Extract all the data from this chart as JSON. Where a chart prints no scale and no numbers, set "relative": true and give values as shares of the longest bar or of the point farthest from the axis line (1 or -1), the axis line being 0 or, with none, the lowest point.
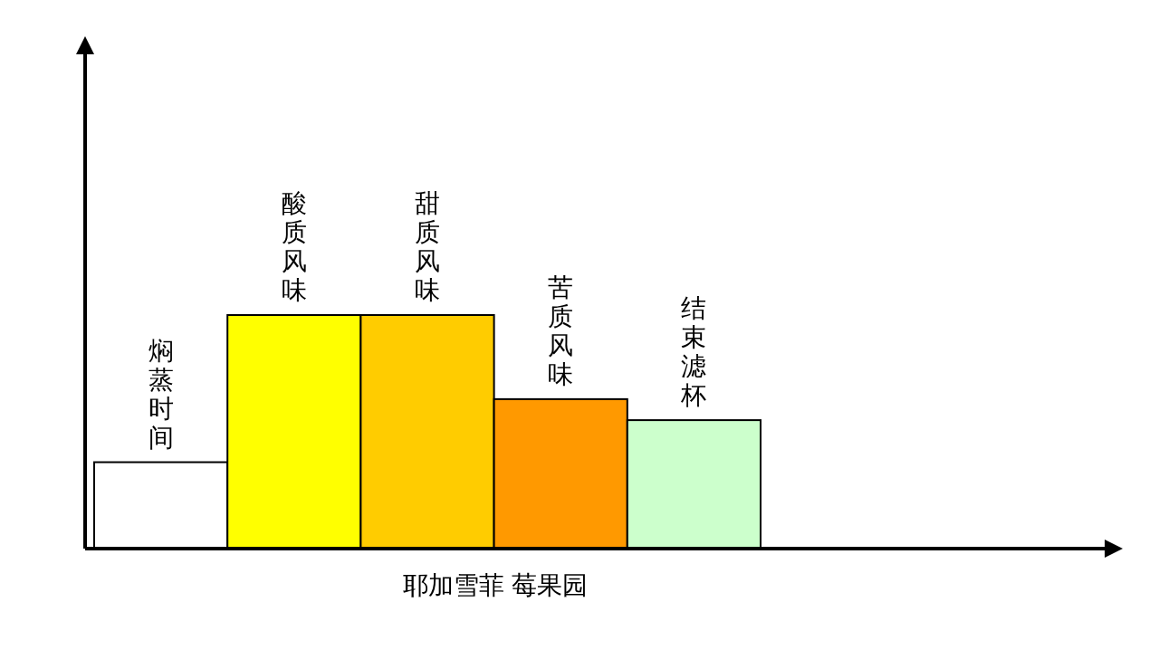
{
  "chart_data": {
    "type": "bar",
    "relative": true,
    "xlabel": "耶加雪菲 莓果园",
    "categories": [
      "焖蒸时间",
      "酸质风味",
      "甜质风味",
      "苦质风味",
      "结束滤杯"
    ],
    "values": [
      0.37,
      1,
      1,
      0.64,
      0.55
    ],
    "colors": [
      "#ffffff",
      "#ffff00",
      "#ffcc00",
      "#ff9900",
      "#ccffcc"
    ]
  }
}
